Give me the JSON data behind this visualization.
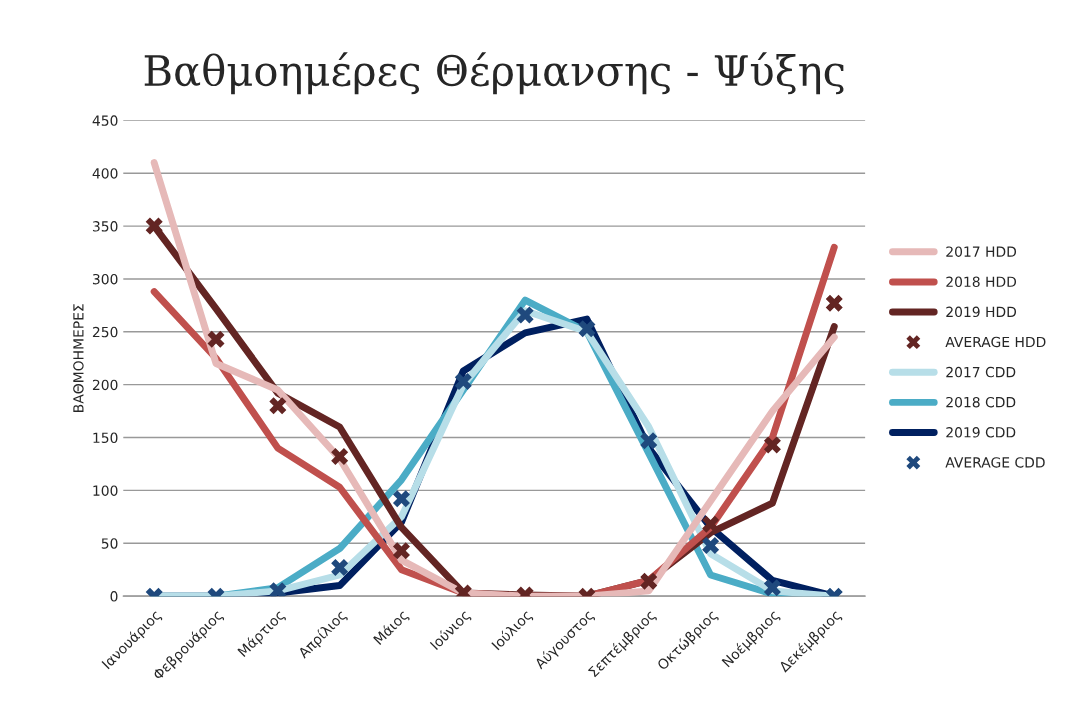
{
  "chart_data": {
    "type": "line",
    "title": "Βαθμοημέρες Θέρμανσης - Ψύξης",
    "ylabel": "ΒΑΘΜΟΗΜΕΡΕΣ",
    "categories": [
      "Ιανουάριος",
      "Φεβρουάριος",
      "Μάρτιος",
      "Απρίλιος",
      "Μάιος",
      "Ιούνιος",
      "Ιούλιος",
      "Αύγουστος",
      "Σεπτέμβριος",
      "Οκτώβριος",
      "Νοέμβριος",
      "Δεκέμβριος"
    ],
    "ylim": [
      0,
      450
    ],
    "yticks": [
      0,
      50,
      100,
      150,
      200,
      250,
      300,
      350,
      400,
      450
    ],
    "grid": "y",
    "legend": "right",
    "line_style": "solid",
    "marker": "none",
    "series": [
      {
        "name": "2017 HDD",
        "color": "#e6b9b8",
        "values": [
          410,
          220,
          195,
          130,
          34,
          3,
          0,
          0,
          5,
          90,
          175,
          245
        ]
      },
      {
        "name": "2018 HDD",
        "color": "#c0504d",
        "values": [
          288,
          225,
          140,
          103,
          25,
          3,
          0,
          0,
          15,
          65,
          150,
          330
        ]
      },
      {
        "name": "2019 HDD",
        "color": "#632523",
        "values": [
          350,
          272,
          192,
          160,
          65,
          3,
          1,
          0,
          15,
          60,
          88,
          255
        ]
      },
      {
        "name": "AVERAGE HDD",
        "color": "#632523",
        "type": "scatter",
        "marker": "cross",
        "values": [
          350,
          243,
          180,
          132,
          43,
          3,
          1,
          0,
          14,
          68,
          143,
          277
        ]
      },
      {
        "name": "2017 CDD",
        "color": "#b7dee8",
        "values": [
          0,
          0,
          5,
          20,
          75,
          200,
          270,
          250,
          160,
          40,
          5,
          0
        ]
      },
      {
        "name": "2018 CDD",
        "color": "#4bacc6",
        "values": [
          0,
          0,
          8,
          45,
          110,
          195,
          280,
          250,
          135,
          20,
          2,
          0
        ]
      },
      {
        "name": "2019 CDD",
        "color": "#002060",
        "values": [
          0,
          0,
          3,
          10,
          70,
          213,
          249,
          262,
          140,
          65,
          15,
          0
        ]
      },
      {
        "name": "AVERAGE CDD",
        "color": "#1f497d",
        "type": "scatter",
        "marker": "cross",
        "values": [
          0,
          0,
          5,
          27,
          92,
          203,
          266,
          253,
          147,
          48,
          8,
          0
        ]
      }
    ]
  }
}
